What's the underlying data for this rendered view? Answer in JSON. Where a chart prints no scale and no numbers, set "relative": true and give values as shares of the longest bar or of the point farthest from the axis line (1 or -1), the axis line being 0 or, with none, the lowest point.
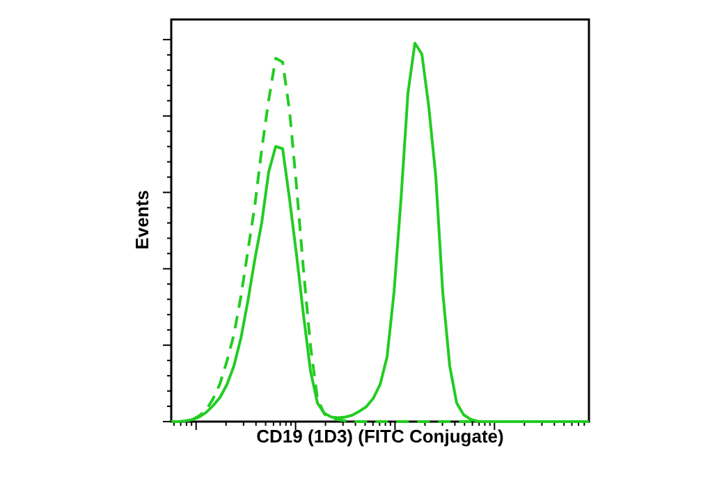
{
  "chart_data": {
    "type": "line",
    "xlabel": "CD19 (1D3) (FITC Conjugate)",
    "ylabel": "Events",
    "relative": true,
    "legend": false,
    "marker": "none",
    "categories": [
      null,
      null,
      null,
      null,
      null,
      null,
      null,
      null,
      null,
      null,
      null,
      null,
      null,
      null,
      null,
      null,
      null,
      null,
      null,
      null,
      null,
      null,
      null,
      null,
      null,
      null,
      null,
      null,
      null,
      null,
      null,
      null,
      null,
      null,
      null,
      null,
      null,
      null,
      null,
      null,
      null,
      null,
      null,
      null,
      null,
      null,
      null,
      null,
      null,
      null,
      null,
      null,
      null,
      null,
      null,
      null,
      null,
      null,
      null,
      null,
      null
    ],
    "series": [
      {
        "color": "#22cc22",
        "line_style": "solid",
        "values": [
          0,
          0,
          0.002,
          0.005,
          0.012,
          0.024,
          0.042,
          0.064,
          0.098,
          0.147,
          0.22,
          0.318,
          0.428,
          0.526,
          0.66,
          0.727,
          0.721,
          0.587,
          0.44,
          0.281,
          0.134,
          0.049,
          0.022,
          0.012,
          0.01,
          0.012,
          0.017,
          0.027,
          0.039,
          0.061,
          0.098,
          0.171,
          0.342,
          0.587,
          0.868,
          1,
          0.971,
          0.831,
          0.647,
          0.342,
          0.147,
          0.049,
          0.018,
          0.006,
          0.001,
          0,
          0,
          0,
          0,
          0,
          0,
          0,
          0,
          0,
          0,
          0,
          0,
          0,
          0,
          0,
          0
        ]
      },
      {
        "color": "#22cc22",
        "line_style": "dashed",
        "values": [
          null,
          null,
          null,
          0.005,
          0.015,
          0.03,
          0.06,
          0.1,
          0.16,
          0.23,
          0.33,
          0.45,
          0.57,
          0.72,
          0.85,
          0.96,
          0.95,
          0.82,
          0.62,
          0.4,
          0.2,
          0.06,
          0.02,
          0.01,
          0.005,
          0.002,
          0,
          0,
          0,
          0,
          0,
          0,
          0,
          0,
          0,
          0,
          0,
          0,
          0,
          0,
          0,
          0,
          0,
          0,
          0,
          null,
          null,
          null,
          null,
          null,
          null,
          null,
          null,
          null,
          null,
          null,
          null,
          null,
          null,
          null,
          null
        ]
      }
    ]
  }
}
